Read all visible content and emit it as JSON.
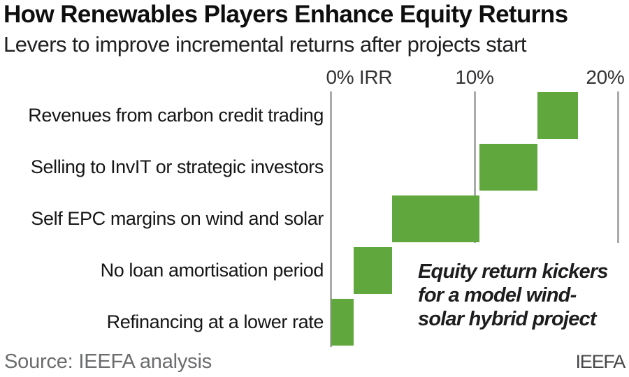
{
  "chart_data": {
    "type": "bar",
    "subtype": "waterfall",
    "orientation": "horizontal",
    "title": "How Renewables Players Enhance Equity Returns",
    "subtitle": "Levers to improve incremental returns after projects start",
    "xlabel": "IRR (%)",
    "xlim": [
      0,
      20.8
    ],
    "grid": "vertical gridlines at each tick, no horizontal axis line",
    "legend": "none",
    "axis": {
      "ticks": [
        {
          "value": 0,
          "label": "0% IRR"
        },
        {
          "value": 10,
          "label": "10%"
        },
        {
          "value": 20,
          "label": "20%"
        }
      ]
    },
    "bars": [
      {
        "label": "Revenues from carbon credit trading",
        "start": 14.4,
        "end": 17.2,
        "delta": 2.8
      },
      {
        "label": "Selling to InvIT or strategic investors",
        "start": 10.35,
        "end": 14.4,
        "delta": 4.05
      },
      {
        "label": "Self EPC margins on wind and solar",
        "start": 4.25,
        "end": 10.35,
        "delta": 6.1
      },
      {
        "label": "No loan amortisation period",
        "start": 1.6,
        "end": 4.25,
        "delta": 2.65
      },
      {
        "label": "Refinancing at a lower rate",
        "start": 0,
        "end": 1.6,
        "delta": 1.6
      }
    ],
    "annotation": {
      "lines": [
        "Equity return kickers",
        "for a model wind-",
        "solar hybrid project"
      ]
    },
    "colors": {
      "bar": "#60a83d",
      "gridline": "#a9aaac",
      "title_text": "#0e0e0f",
      "source_text": "#6b6c6e"
    }
  },
  "footer": {
    "source": "Source: IEEFA analysis",
    "brand": "IEEFA"
  }
}
